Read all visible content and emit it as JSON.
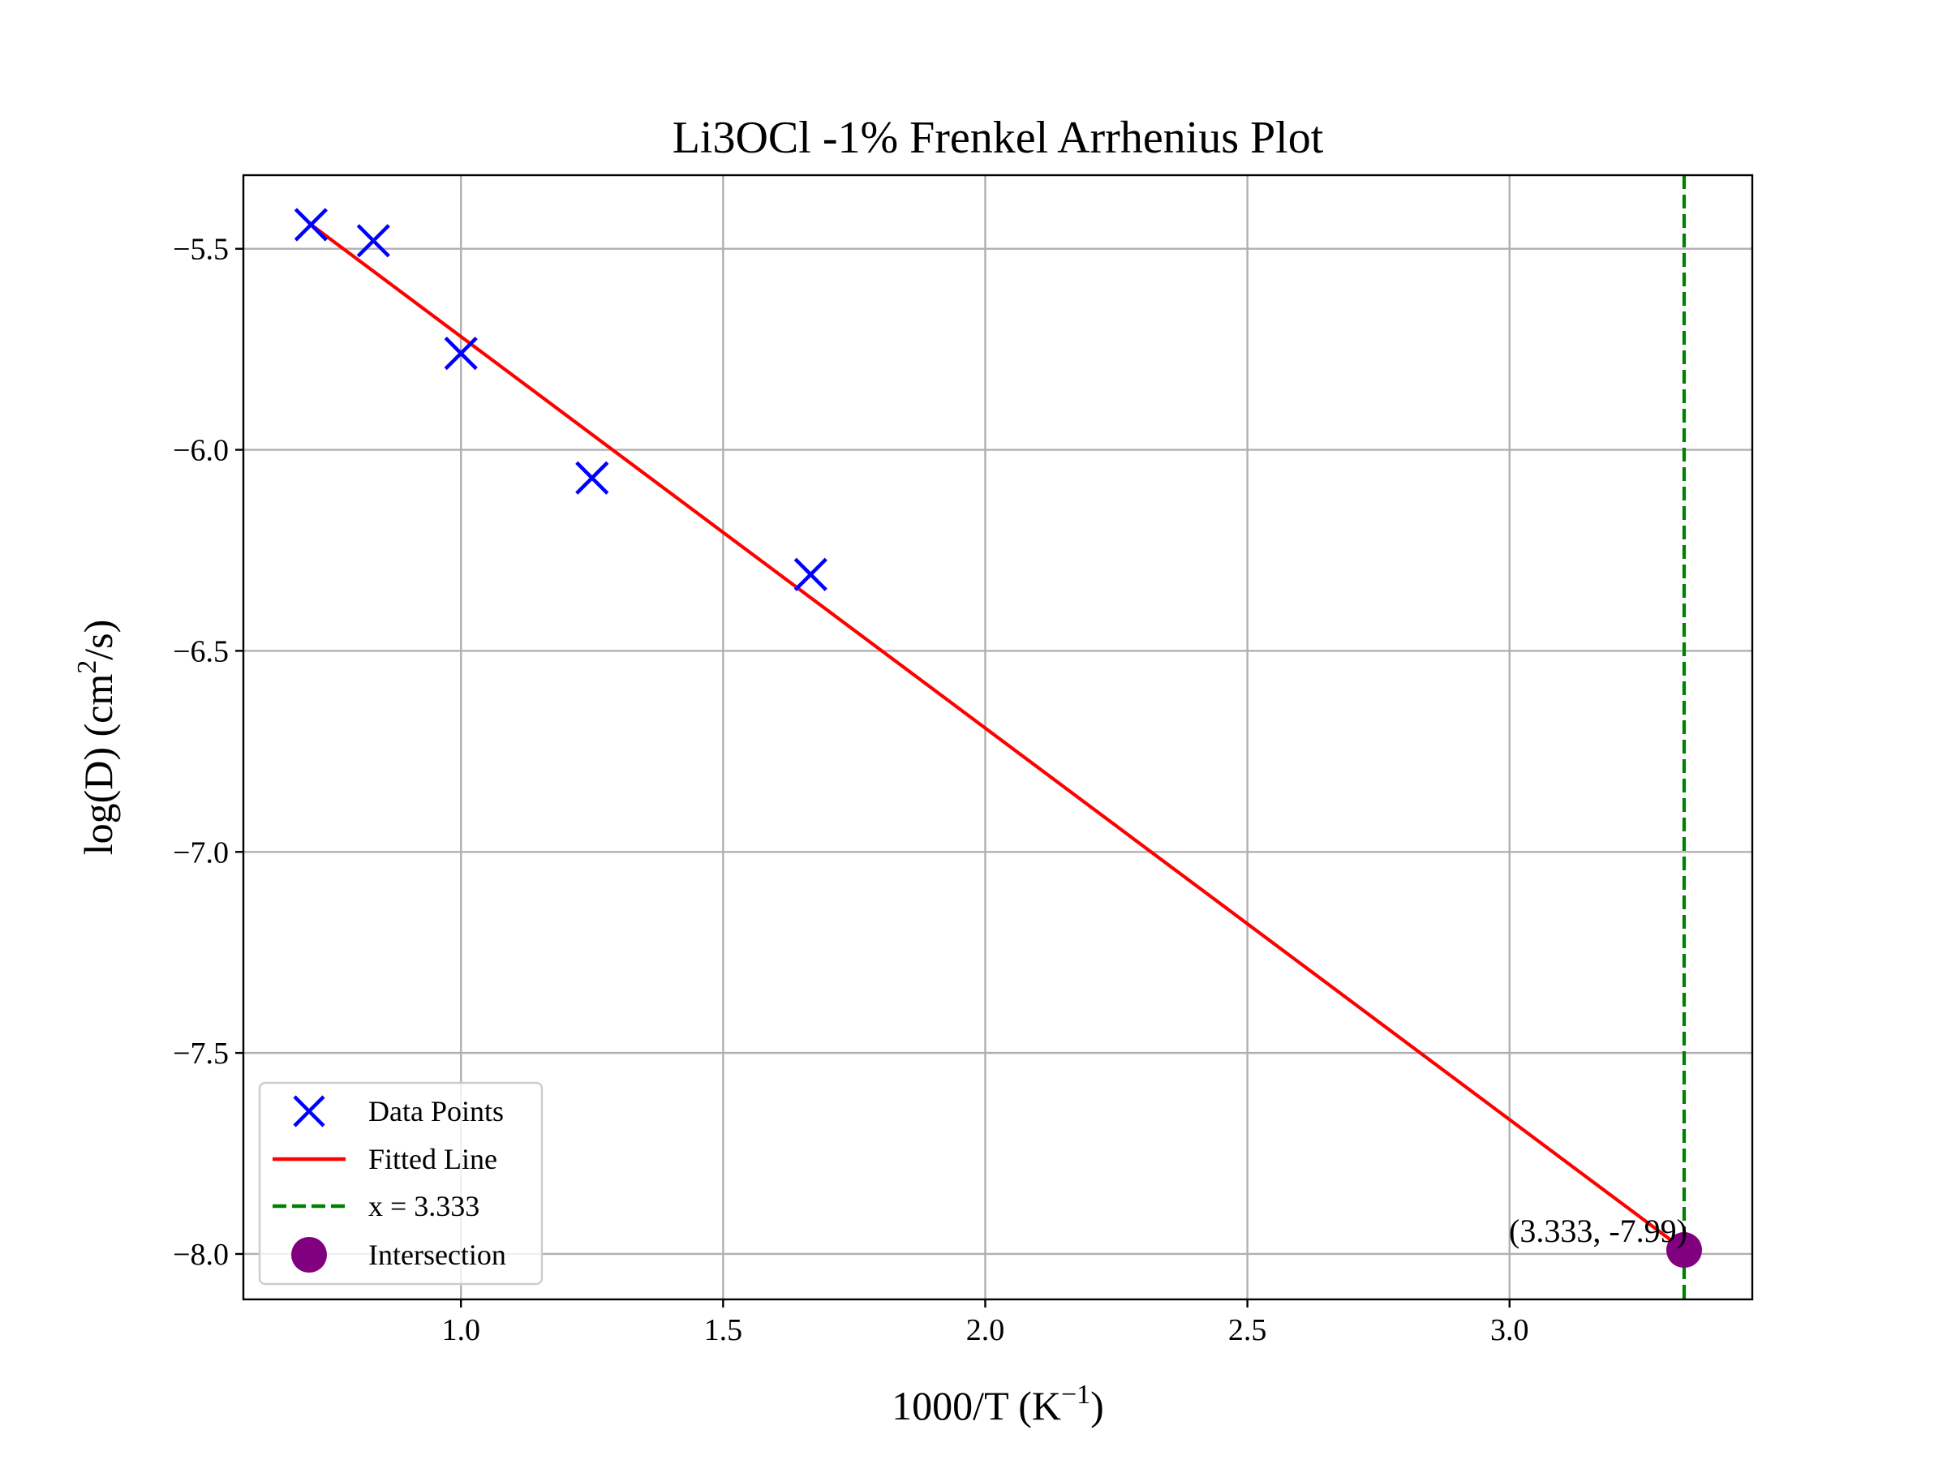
{
  "chart_data": {
    "type": "scatter",
    "title": "Li3OCl -1% Frenkel Arrhenius Plot",
    "xlabel": "1000/T (K",
    "xlabel_sup": "−1",
    "xlabel_end": ")",
    "ylabel": "log(D) (cm",
    "ylabel_sup": "2",
    "ylabel_end": "/s)",
    "xlim": [
      0.585,
      3.463
    ],
    "ylim": [
      -8.113,
      -5.317
    ],
    "xticks": [
      1.0,
      1.5,
      2.0,
      2.5,
      3.0
    ],
    "xtick_labels": [
      "1.0",
      "1.5",
      "2.0",
      "2.5",
      "3.0"
    ],
    "yticks": [
      -5.5,
      -6.0,
      -6.5,
      -7.0,
      -7.5,
      -8.0
    ],
    "ytick_labels": [
      "−5.5",
      "−6.0",
      "−6.5",
      "−7.0",
      "−7.5",
      "−8.0"
    ],
    "grid": true,
    "legend_position": "lower-left",
    "series": [
      {
        "name": "Data Points",
        "kind": "scatter",
        "marker": "x",
        "color": "#0000ff",
        "x": [
          0.714,
          0.833,
          1.0,
          1.25,
          1.667
        ],
        "y": [
          -5.44,
          -5.48,
          -5.76,
          -6.07,
          -6.31
        ]
      },
      {
        "name": "Fitted Line",
        "kind": "line",
        "color": "#ff0000",
        "x": [
          0.714,
          3.333
        ],
        "y": [
          -5.44,
          -7.99
        ]
      },
      {
        "name": "x = 3.333",
        "kind": "vline",
        "style": "dashed",
        "color": "#008000",
        "x": 3.333
      },
      {
        "name": "Intersection",
        "kind": "point",
        "color": "#800080",
        "x": 3.333,
        "y": -7.99
      }
    ],
    "annotations": [
      {
        "text": "(3.333, -7.99)",
        "x": 3.333,
        "y": -7.99
      }
    ]
  }
}
